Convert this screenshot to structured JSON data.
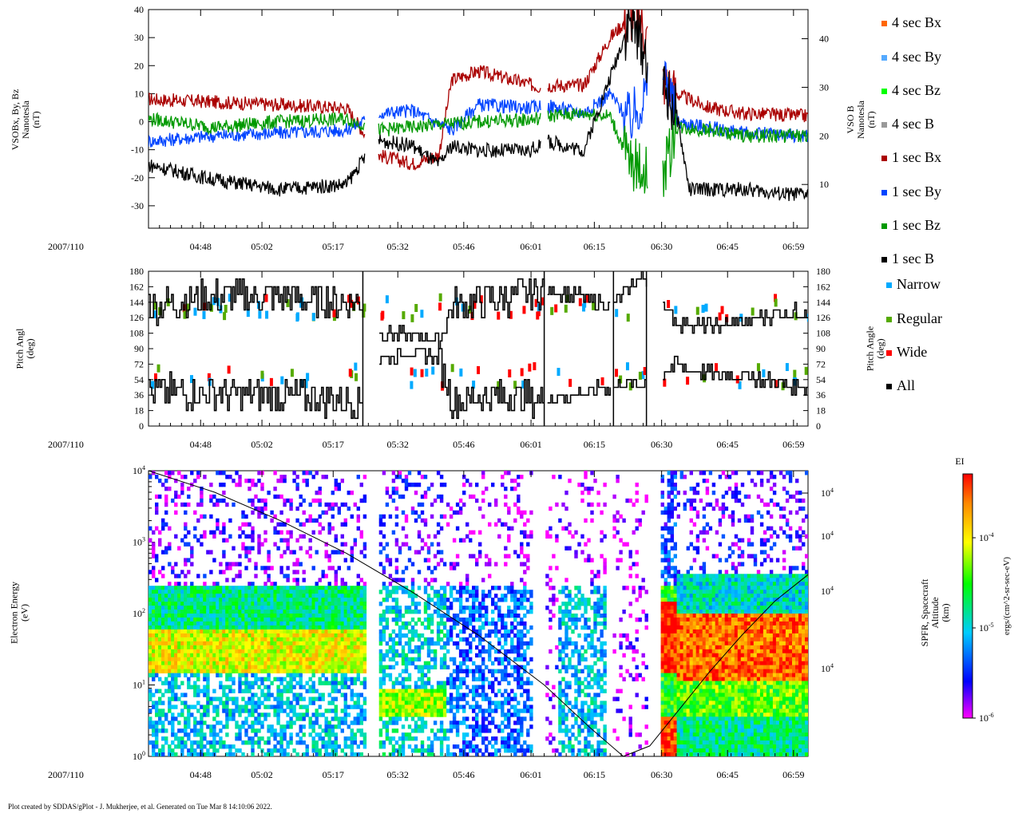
{
  "footer": "Plot created by SDDAS/gPlot - J. Mukherjee, et al.  Generated on Tue Mar 8 14:10:06 2022.",
  "date_label": "2007/110",
  "time_ticks": [
    "04:48",
    "05:02",
    "05:17",
    "05:32",
    "05:46",
    "06:01",
    "06:15",
    "06:30",
    "06:45",
    "06:59"
  ],
  "legend": [
    {
      "label": "4 sec Bx",
      "color": "#ff6600"
    },
    {
      "label": "4 sec By",
      "color": "#55aaff"
    },
    {
      "label": "4 sec Bz",
      "color": "#00ff00"
    },
    {
      "label": "4 sec B",
      "color": "#999999"
    },
    {
      "label": "1 sec Bx",
      "color": "#aa0000"
    },
    {
      "label": "1 sec By",
      "color": "#0044ff"
    },
    {
      "label": "1 sec Bz",
      "color": "#009900"
    },
    {
      "label": "1 sec B",
      "color": "#000000"
    },
    {
      "label": "Narrow",
      "color": "#00aaff"
    },
    {
      "label": "Regular",
      "color": "#55aa00"
    },
    {
      "label": "Wide",
      "color": "#ff0000"
    },
    {
      "label": "All",
      "color": "#000000"
    }
  ],
  "chart_data": [
    {
      "type": "line",
      "panel": "magnetometer",
      "ylabel_left": [
        "VSOBx, By, Bz",
        "Nanotesla",
        "(nT)"
      ],
      "ylabel_right": [
        "VSO B",
        "Nanotesla",
        "(nT)"
      ],
      "ylim_left": [
        -38,
        40
      ],
      "yticks_left": [
        40,
        30,
        20,
        10,
        0,
        -10,
        -20,
        -30
      ],
      "ylim_right": [
        1,
        46
      ],
      "yticks_right": [
        40,
        30,
        20,
        10
      ],
      "xlabel": "",
      "series": [
        {
          "name": "1 sec Bx",
          "color": "#aa0000",
          "axis": "left",
          "values": [
            [
              0,
              8
            ],
            [
              0.1,
              7
            ],
            [
              0.2,
              6
            ],
            [
              0.3,
              5
            ],
            [
              0.33,
              -5
            ],
            [
              0.35,
              -12
            ],
            [
              0.4,
              -15
            ],
            [
              0.44,
              -12
            ],
            [
              0.46,
              15
            ],
            [
              0.5,
              18
            ],
            [
              0.6,
              12
            ],
            [
              0.6,
              13
            ],
            [
              0.66,
              13
            ],
            [
              0.7,
              30
            ],
            [
              0.74,
              40
            ],
            [
              0.78,
              15
            ],
            [
              0.8,
              10
            ],
            [
              0.85,
              5
            ],
            [
              0.9,
              3
            ],
            [
              1,
              2
            ]
          ]
        },
        {
          "name": "1 sec By",
          "color": "#0044ff",
          "axis": "left",
          "values": [
            [
              0,
              -7
            ],
            [
              0.1,
              -5
            ],
            [
              0.2,
              -4
            ],
            [
              0.3,
              -3
            ],
            [
              0.35,
              3
            ],
            [
              0.4,
              4
            ],
            [
              0.46,
              -3
            ],
            [
              0.5,
              6
            ],
            [
              0.58,
              5
            ],
            [
              0.6,
              6
            ],
            [
              0.66,
              3
            ],
            [
              0.7,
              10
            ],
            [
              0.73,
              0
            ],
            [
              0.78,
              20
            ],
            [
              0.8,
              0
            ],
            [
              0.85,
              -2
            ],
            [
              0.9,
              -4
            ],
            [
              1,
              -5
            ]
          ]
        },
        {
          "name": "1 sec Bz",
          "color": "#009900",
          "axis": "left",
          "values": [
            [
              0,
              1
            ],
            [
              0.1,
              -2
            ],
            [
              0.2,
              0
            ],
            [
              0.3,
              1
            ],
            [
              0.35,
              -3
            ],
            [
              0.4,
              -2
            ],
            [
              0.44,
              -1
            ],
            [
              0.5,
              0
            ],
            [
              0.6,
              1
            ],
            [
              0.6,
              2
            ],
            [
              0.66,
              3
            ],
            [
              0.7,
              2
            ],
            [
              0.73,
              -15
            ],
            [
              0.78,
              -20
            ],
            [
              0.8,
              -2
            ],
            [
              0.85,
              -3
            ],
            [
              0.9,
              -5
            ],
            [
              1,
              -5
            ]
          ]
        },
        {
          "name": "1 sec B",
          "color": "#000000",
          "axis": "right",
          "values": [
            [
              0,
              14
            ],
            [
              0.1,
              11
            ],
            [
              0.2,
              9
            ],
            [
              0.3,
              10
            ],
            [
              0.33,
              16
            ],
            [
              0.35,
              19
            ],
            [
              0.4,
              18
            ],
            [
              0.44,
              14
            ],
            [
              0.46,
              18
            ],
            [
              0.5,
              17
            ],
            [
              0.58,
              17
            ],
            [
              0.6,
              19
            ],
            [
              0.66,
              17
            ],
            [
              0.7,
              32
            ],
            [
              0.73,
              44
            ],
            [
              0.76,
              35
            ],
            [
              0.8,
              25
            ],
            [
              0.82,
              9
            ],
            [
              0.9,
              9
            ],
            [
              0.97,
              8
            ],
            [
              1,
              8
            ]
          ]
        }
      ]
    },
    {
      "type": "line",
      "panel": "pitch_angle",
      "ylabel_left": [
        "Pitch Angl",
        "(deg)"
      ],
      "ylabel_right": [
        "Pitch Angle",
        "(deg)"
      ],
      "ylim": [
        0,
        180
      ],
      "yticks": [
        180,
        162,
        144,
        126,
        108,
        90,
        72,
        54,
        36,
        18,
        0
      ],
      "series": [
        {
          "name": "All (upper)",
          "color": "#000000",
          "values": [
            [
              0,
              140
            ],
            [
              0.1,
              150
            ],
            [
              0.2,
              150
            ],
            [
              0.32,
              145
            ],
            [
              0.35,
              108
            ],
            [
              0.4,
              105
            ],
            [
              0.44,
              100
            ],
            [
              0.46,
              140
            ],
            [
              0.55,
              150
            ],
            [
              0.6,
              160
            ],
            [
              0.66,
              150
            ],
            [
              0.7,
              140
            ],
            [
              0.75,
              175
            ],
            [
              0.8,
              120
            ],
            [
              0.85,
              115
            ],
            [
              0.9,
              120
            ],
            [
              0.95,
              130
            ],
            [
              1,
              135
            ]
          ]
        },
        {
          "name": "All (lower)",
          "color": "#000000",
          "values": [
            [
              0,
              40
            ],
            [
              0.1,
              38
            ],
            [
              0.2,
              35
            ],
            [
              0.32,
              30
            ],
            [
              0.35,
              80
            ],
            [
              0.4,
              85
            ],
            [
              0.44,
              80
            ],
            [
              0.46,
              30
            ],
            [
              0.55,
              35
            ],
            [
              0.6,
              30
            ],
            [
              0.66,
              40
            ],
            [
              0.7,
              45
            ],
            [
              0.75,
              50
            ],
            [
              0.8,
              70
            ],
            [
              0.85,
              60
            ],
            [
              0.9,
              60
            ],
            [
              0.95,
              50
            ],
            [
              1,
              45
            ]
          ]
        }
      ]
    },
    {
      "type": "heatmap",
      "panel": "electron_spectrogram",
      "ylabel_left": [
        "Electron Energy",
        "(eV)"
      ],
      "ylabel_right": [
        "SPFR, Spacecraft",
        "Altitude",
        "(km)"
      ],
      "yscale": "log",
      "ylim": [
        1,
        10000
      ],
      "yticks": [
        "10^4",
        "10^3",
        "10^2",
        "10^1",
        "10^0"
      ],
      "right_ticks": [
        "10^4",
        "10^4",
        "10^4",
        "10^4"
      ],
      "colorbar": {
        "title": "EI",
        "label": "ergs/(cm^2-sr-sec-eV)",
        "ticks": [
          "10^-4",
          "10^-5",
          "10^-6"
        ]
      },
      "altitude_curve": [
        [
          0,
          10000
        ],
        [
          0.1,
          5000
        ],
        [
          0.2,
          2000
        ],
        [
          0.3,
          700
        ],
        [
          0.4,
          200
        ],
        [
          0.5,
          50
        ],
        [
          0.6,
          10
        ],
        [
          0.67,
          2.5
        ],
        [
          0.72,
          1
        ],
        [
          0.76,
          1.4
        ],
        [
          0.8,
          4
        ],
        [
          0.85,
          15
        ],
        [
          0.9,
          50
        ],
        [
          0.95,
          150
        ],
        [
          1,
          350
        ]
      ]
    }
  ],
  "footer_note": ""
}
